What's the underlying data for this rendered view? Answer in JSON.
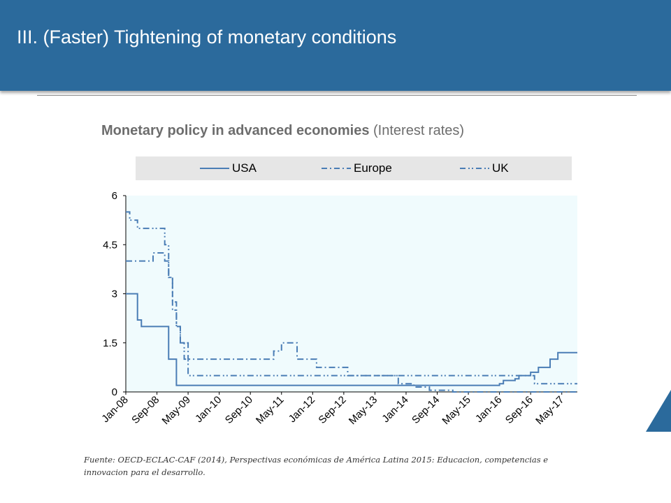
{
  "header": {
    "title": "III. (Faster) Tightening of monetary conditions"
  },
  "chart_title": {
    "bold": "Monetary policy in advanced economies",
    "rest": " (Interest rates)"
  },
  "source": "Fuente: OECD-ECLAC-CAF (2014), Perspectivas económicas de América Latina 2015: Educacion, competencias e innovacion para el desarrollo.",
  "colors": {
    "header": "#2b6a9c",
    "line": "#4a7db5",
    "plot_bg": "#f0fbfd"
  },
  "chart_data": {
    "type": "line",
    "ylim": [
      0,
      6
    ],
    "yticks": [
      "0",
      "1.5",
      "3",
      "4.5",
      "6"
    ],
    "xticks": [
      "Jan-08",
      "Sep-08",
      "May-09",
      "Jan-10",
      "Sep-10",
      "May-11",
      "Jan-12",
      "Sep-12",
      "May-13",
      "Jan-14",
      "Sep-14",
      "May-15",
      "Jan-16",
      "Sep-16",
      "May-17"
    ],
    "legend": [
      "USA",
      "Europe",
      "UK"
    ],
    "series": [
      {
        "name": "USA",
        "dash": "solid",
        "points": [
          [
            0,
            3
          ],
          [
            2,
            3
          ],
          [
            3,
            2.2
          ],
          [
            4,
            2
          ],
          [
            10,
            2
          ],
          [
            11,
            1
          ],
          [
            12,
            1
          ],
          [
            13,
            0.2
          ],
          [
            95,
            0.2
          ],
          [
            96,
            0.25
          ],
          [
            97,
            0.35
          ],
          [
            100,
            0.4
          ],
          [
            101,
            0.5
          ],
          [
            104,
            0.6
          ],
          [
            106,
            0.75
          ],
          [
            109,
            1
          ],
          [
            111,
            1.2
          ],
          [
            116,
            1.2
          ]
        ]
      },
      {
        "name": "Europe",
        "dash": "dashdot",
        "points": [
          [
            0,
            4
          ],
          [
            5,
            4
          ],
          [
            6,
            4
          ],
          [
            7,
            4.25
          ],
          [
            9,
            4.25
          ],
          [
            10,
            4
          ],
          [
            11,
            3.5
          ],
          [
            12,
            2.75
          ],
          [
            13,
            2
          ],
          [
            14,
            1.5
          ],
          [
            16,
            1
          ],
          [
            37,
            1
          ],
          [
            38,
            1.25
          ],
          [
            40,
            1.5
          ],
          [
            42,
            1.5
          ],
          [
            44,
            1
          ],
          [
            48,
            1
          ],
          [
            49,
            0.75
          ],
          [
            53,
            0.75
          ],
          [
            56,
            0.75
          ],
          [
            57,
            0.5
          ],
          [
            69,
            0.5
          ],
          [
            70,
            0.25
          ],
          [
            74,
            0.15
          ],
          [
            78,
            0.05
          ],
          [
            83,
            0.05
          ],
          [
            84,
            0
          ],
          [
            116,
            0
          ]
        ]
      },
      {
        "name": "UK",
        "dash": "dashdotdot",
        "points": [
          [
            0,
            5.5
          ],
          [
            1,
            5.25
          ],
          [
            3,
            5
          ],
          [
            6,
            5
          ],
          [
            9,
            5
          ],
          [
            10,
            4.5
          ],
          [
            11,
            3.5
          ],
          [
            12,
            2.5
          ],
          [
            13,
            2
          ],
          [
            14,
            1.5
          ],
          [
            15,
            1
          ],
          [
            16,
            0.5
          ],
          [
            104,
            0.5
          ],
          [
            105,
            0.25
          ],
          [
            116,
            0.25
          ]
        ]
      }
    ]
  }
}
